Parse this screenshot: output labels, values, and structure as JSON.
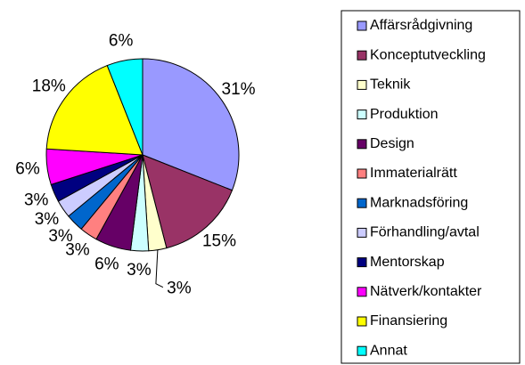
{
  "chart_data": {
    "type": "pie",
    "categories": [
      "Affärsrådgivning",
      "Konceptutveckling",
      "Teknik",
      "Produktion",
      "Design",
      "Immaterialrätt",
      "Marknadsföring",
      "Förhandling/avtal",
      "Mentorskap",
      "Nätverk/kontakter",
      "Finansiering",
      "Annat"
    ],
    "values": [
      31,
      15,
      3,
      3,
      6,
      3,
      3,
      3,
      3,
      6,
      18,
      6
    ],
    "value_labels": [
      "31%",
      "15%",
      "3%",
      "3%",
      "6%",
      "3%",
      "3%",
      "3%",
      "3%",
      "6%",
      "18%",
      "6%"
    ],
    "colors": [
      "#9999ff",
      "#993366",
      "#ffffcc",
      "#ccffff",
      "#660066",
      "#ff8080",
      "#0066cc",
      "#ccccff",
      "#000080",
      "#ff00ff",
      "#ffff00",
      "#00ffff"
    ],
    "legend": "right"
  }
}
